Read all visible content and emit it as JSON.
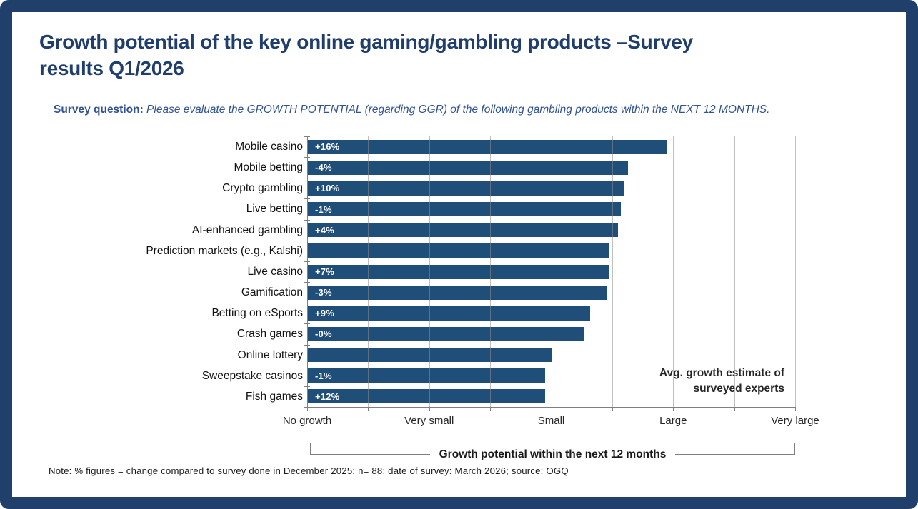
{
  "title_lines": [
    "Growth potential of the key online gaming/gambling products –Survey",
    "results Q1/2026"
  ],
  "survey": {
    "label": "Survey question:",
    "text": " Please evaluate the GROWTH POTENTIAL (regarding GGR) of the following gambling products within the NEXT 12 MONTHS."
  },
  "chart_data": {
    "type": "bar",
    "orientation": "horizontal",
    "categories": [
      "Mobile casino",
      "Mobile betting",
      "Crypto gambling",
      "Live betting",
      "AI-enhanced gambling",
      "Prediction markets (e.g., Kalshi)",
      "Live casino",
      "Gamification",
      "Betting on eSports",
      "Crash games",
      "Online lottery",
      "Sweepstake casinos",
      "Fish games"
    ],
    "values": [
      2.95,
      2.63,
      2.6,
      2.57,
      2.55,
      2.47,
      2.47,
      2.46,
      2.32,
      2.27,
      2.01,
      1.95,
      1.95
    ],
    "bar_labels": [
      "+16%",
      "-4%",
      "+10%",
      "-1%",
      "+4%",
      "",
      "+7%",
      "-3%",
      "+9%",
      "-0%",
      "",
      "-1%",
      "+12%"
    ],
    "x_axis": {
      "label": "Growth potential within the next 12 months",
      "tick_labels": [
        "No growth",
        "Very small",
        "Small",
        "Large",
        "Very large"
      ],
      "range": [
        0,
        4
      ],
      "minor_tick_count": 9
    },
    "annotation_lines": [
      "Avg. growth estimate of",
      "surveyed experts"
    ],
    "bar_color": "#1f4e79",
    "grid": true,
    "legend": false
  },
  "note": "Note: % figures = change compared to survey done in December 2025; n= 88; date of survey: March 2026; source: OGQ",
  "colors": {
    "frame": "#20406b",
    "bar": "#1f4e79",
    "title_text": "#1f3e6c",
    "survey_text": "#2f5292",
    "axis": "#7f7f7f",
    "gridline": "#8c8c8c"
  }
}
